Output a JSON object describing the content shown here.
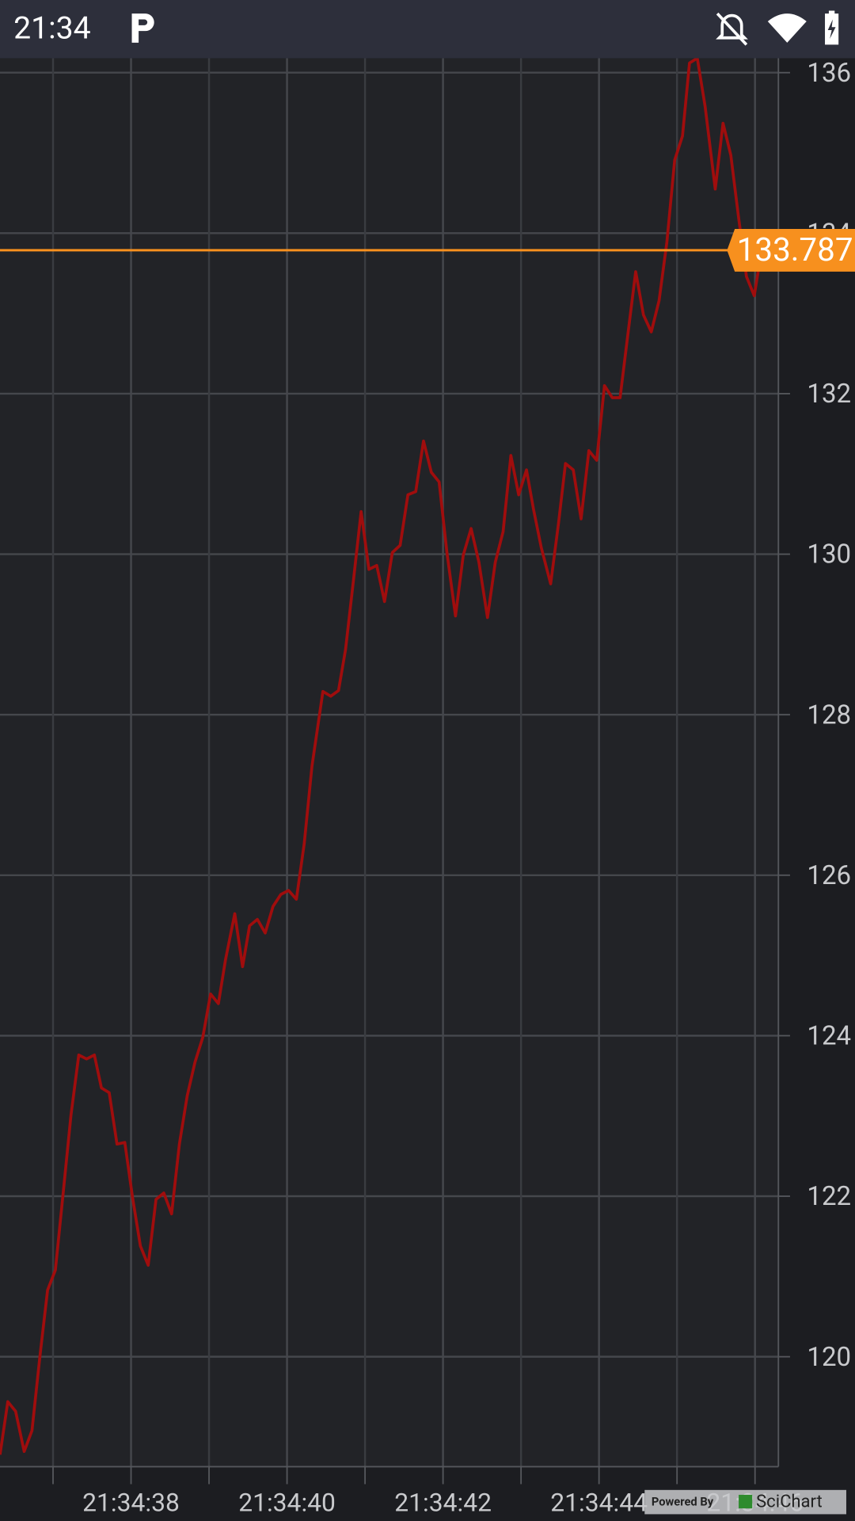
{
  "status_bar": {
    "time": "21:34"
  },
  "chart_data": {
    "type": "line",
    "x": [
      36.32,
      36.42,
      36.52,
      36.63,
      36.73,
      36.83,
      36.93,
      37.03,
      37.13,
      37.23,
      37.33,
      37.43,
      37.53,
      37.62,
      37.72,
      37.82,
      37.92,
      38.02,
      38.12,
      38.22,
      38.32,
      38.42,
      38.52,
      38.62,
      38.72,
      38.82,
      38.92,
      39.02,
      39.12,
      39.21,
      39.33,
      39.43,
      39.52,
      39.62,
      39.72,
      39.82,
      39.92,
      40.02,
      40.12,
      40.22,
      40.32,
      40.46,
      40.56,
      40.66,
      40.75,
      40.85,
      40.95,
      41.05,
      41.15,
      41.25,
      41.35,
      41.45,
      41.55,
      41.65,
      41.75,
      41.85,
      41.95,
      42.05,
      42.16,
      42.26,
      42.36,
      42.46,
      42.57,
      42.67,
      42.77,
      42.87,
      42.97,
      43.07,
      43.16,
      43.26,
      43.38,
      43.48,
      43.57,
      43.67,
      43.77,
      43.87,
      43.97,
      44.07,
      44.17,
      44.27,
      44.37,
      44.47,
      44.57,
      44.67,
      44.77,
      44.87,
      44.97,
      45.07,
      45.16,
      45.26,
      45.36,
      45.49,
      45.59,
      45.69,
      45.79,
      45.89,
      45.99,
      46.08
    ],
    "values": [
      118.78,
      119.44,
      119.32,
      118.82,
      119.08,
      119.99,
      120.83,
      121.08,
      122.04,
      123.01,
      123.76,
      123.71,
      123.76,
      123.35,
      123.29,
      122.65,
      122.67,
      121.98,
      121.38,
      121.14,
      121.96,
      122.04,
      121.78,
      122.65,
      123.25,
      123.67,
      123.98,
      124.52,
      124.4,
      124.94,
      125.52,
      124.86,
      125.37,
      125.45,
      125.28,
      125.61,
      125.76,
      125.81,
      125.7,
      126.39,
      127.36,
      128.29,
      128.23,
      128.3,
      128.81,
      129.66,
      130.53,
      129.81,
      129.86,
      129.41,
      130.02,
      130.11,
      130.74,
      130.78,
      131.41,
      131.02,
      130.9,
      130.02,
      129.23,
      129.99,
      130.32,
      129.9,
      129.21,
      129.9,
      130.28,
      131.23,
      130.74,
      131.05,
      130.56,
      130.08,
      129.63,
      130.38,
      131.13,
      131.05,
      130.44,
      131.29,
      131.17,
      132.1,
      131.95,
      131.95,
      132.74,
      133.52,
      132.98,
      132.77,
      133.16,
      133.89,
      134.91,
      135.21,
      136.12,
      136.18,
      135.58,
      134.55,
      135.37,
      134.97,
      134.19,
      133.46,
      133.22,
      133.76
    ],
    "color": "#a00d0d",
    "xlim": [
      36.32,
      46.3
    ],
    "xticks": [
      {
        "value": 38,
        "label": "21:34:38"
      },
      {
        "value": 40,
        "label": "21:34:40"
      },
      {
        "value": 42,
        "label": "21:34:42"
      },
      {
        "value": 44,
        "label": "21:34:44"
      },
      {
        "value": 46,
        "label": "21:34:46"
      }
    ],
    "x_minor_ticks": [
      37,
      39,
      41,
      43,
      45
    ],
    "ylim": [
      118.63,
      136.18
    ],
    "yticks": [
      120,
      122,
      124,
      126,
      128,
      130,
      132,
      134,
      136
    ],
    "grid": true,
    "annotation": {
      "value": 133.787,
      "color": "#f7901e"
    },
    "watermark": {
      "prefix": "Powered By",
      "brand": "SciChart"
    }
  }
}
